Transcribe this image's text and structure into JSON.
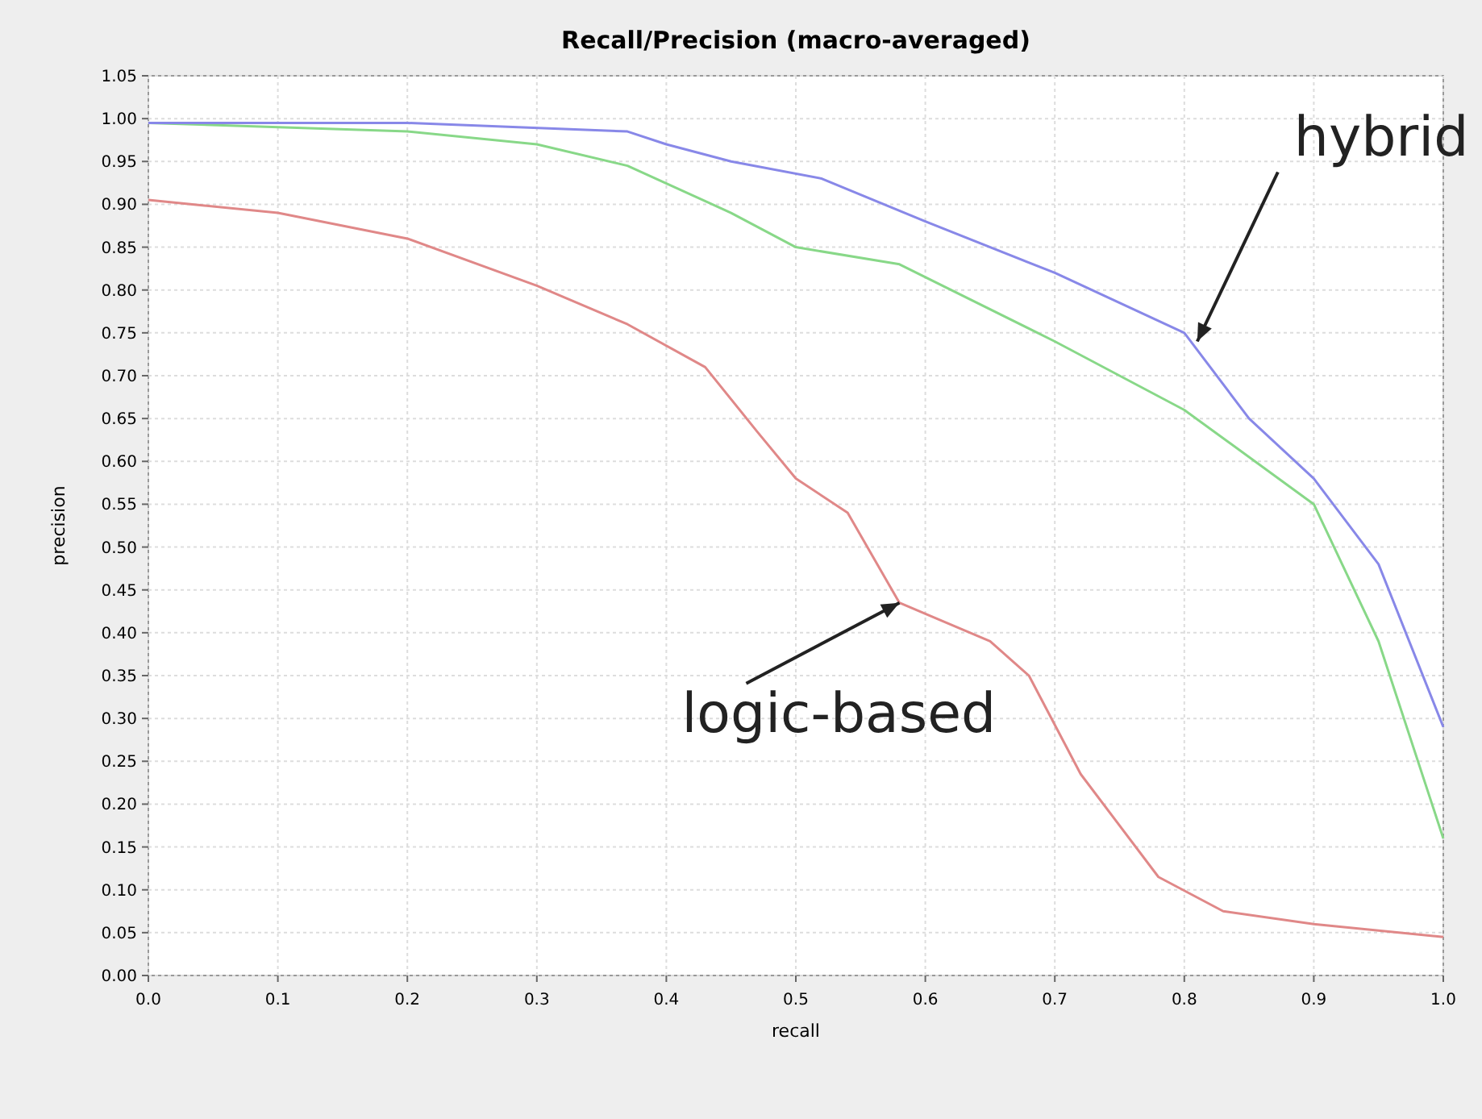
{
  "chart_data": {
    "type": "line",
    "title": "Recall/Precision (macro-averaged)",
    "xlabel": "recall",
    "ylabel": "precision",
    "xlim": [
      0,
      1
    ],
    "ylim": [
      0,
      1.05
    ],
    "xticks": [
      {
        "value": 0,
        "label": "0.0"
      },
      {
        "value": 0.1,
        "label": "0.1"
      },
      {
        "value": 0.2,
        "label": "0.2"
      },
      {
        "value": 0.3,
        "label": "0.3"
      },
      {
        "value": 0.4,
        "label": "0.4"
      },
      {
        "value": 0.5,
        "label": "0.5"
      },
      {
        "value": 0.6,
        "label": "0.6"
      },
      {
        "value": 0.7,
        "label": "0.7"
      },
      {
        "value": 0.8,
        "label": "0.8"
      },
      {
        "value": 0.9,
        "label": "0.9"
      },
      {
        "value": 1,
        "label": "1.0"
      }
    ],
    "yticks": [
      {
        "value": 0,
        "label": "0.00"
      },
      {
        "value": 0.05,
        "label": "0.05"
      },
      {
        "value": 0.1,
        "label": "0.10"
      },
      {
        "value": 0.15,
        "label": "0.15"
      },
      {
        "value": 0.2,
        "label": "0.20"
      },
      {
        "value": 0.25,
        "label": "0.25"
      },
      {
        "value": 0.3,
        "label": "0.30"
      },
      {
        "value": 0.35,
        "label": "0.35"
      },
      {
        "value": 0.4,
        "label": "0.40"
      },
      {
        "value": 0.45,
        "label": "0.45"
      },
      {
        "value": 0.5,
        "label": "0.50"
      },
      {
        "value": 0.55,
        "label": "0.55"
      },
      {
        "value": 0.6,
        "label": "0.60"
      },
      {
        "value": 0.65,
        "label": "0.65"
      },
      {
        "value": 0.7,
        "label": "0.70"
      },
      {
        "value": 0.75,
        "label": "0.75"
      },
      {
        "value": 0.8,
        "label": "0.80"
      },
      {
        "value": 0.85,
        "label": "0.85"
      },
      {
        "value": 0.9,
        "label": "0.90"
      },
      {
        "value": 0.95,
        "label": "0.95"
      },
      {
        "value": 1,
        "label": "1.00"
      },
      {
        "value": 1.05,
        "label": "1.05"
      }
    ],
    "grid": true,
    "marker": "none",
    "line_style": "solid",
    "series": [
      {
        "color": "#e08888",
        "x": [
          0,
          0.1,
          0.2,
          0.3,
          0.37,
          0.43,
          0.47,
          0.5,
          0.54,
          0.58,
          0.65,
          0.68,
          0.72,
          0.78,
          0.83,
          0.9,
          1
        ],
        "values": [
          0.905,
          0.89,
          0.86,
          0.805,
          0.76,
          0.71,
          0.635,
          0.58,
          0.54,
          0.435,
          0.39,
          0.35,
          0.235,
          0.115,
          0.075,
          0.06,
          0.045
        ]
      },
      {
        "color": "#88d888",
        "x": [
          0,
          0.2,
          0.3,
          0.37,
          0.45,
          0.5,
          0.58,
          0.7,
          0.8,
          0.9,
          0.95,
          1
        ],
        "values": [
          0.995,
          0.985,
          0.97,
          0.945,
          0.89,
          0.85,
          0.83,
          0.74,
          0.66,
          0.55,
          0.39,
          0.16
        ]
      },
      {
        "color": "#8888e8",
        "x": [
          0,
          0.2,
          0.37,
          0.4,
          0.45,
          0.52,
          0.6,
          0.7,
          0.8,
          0.85,
          0.9,
          0.95,
          1
        ],
        "values": [
          0.995,
          0.995,
          0.985,
          0.97,
          0.95,
          0.93,
          0.88,
          0.82,
          0.75,
          0.65,
          0.58,
          0.48,
          0.29
        ]
      }
    ],
    "annotations": [
      {
        "text": "hybrid",
        "x": 0.81,
        "y": 0.74
      },
      {
        "text": "logic-based",
        "x": 0.58,
        "y": 0.435
      }
    ]
  }
}
